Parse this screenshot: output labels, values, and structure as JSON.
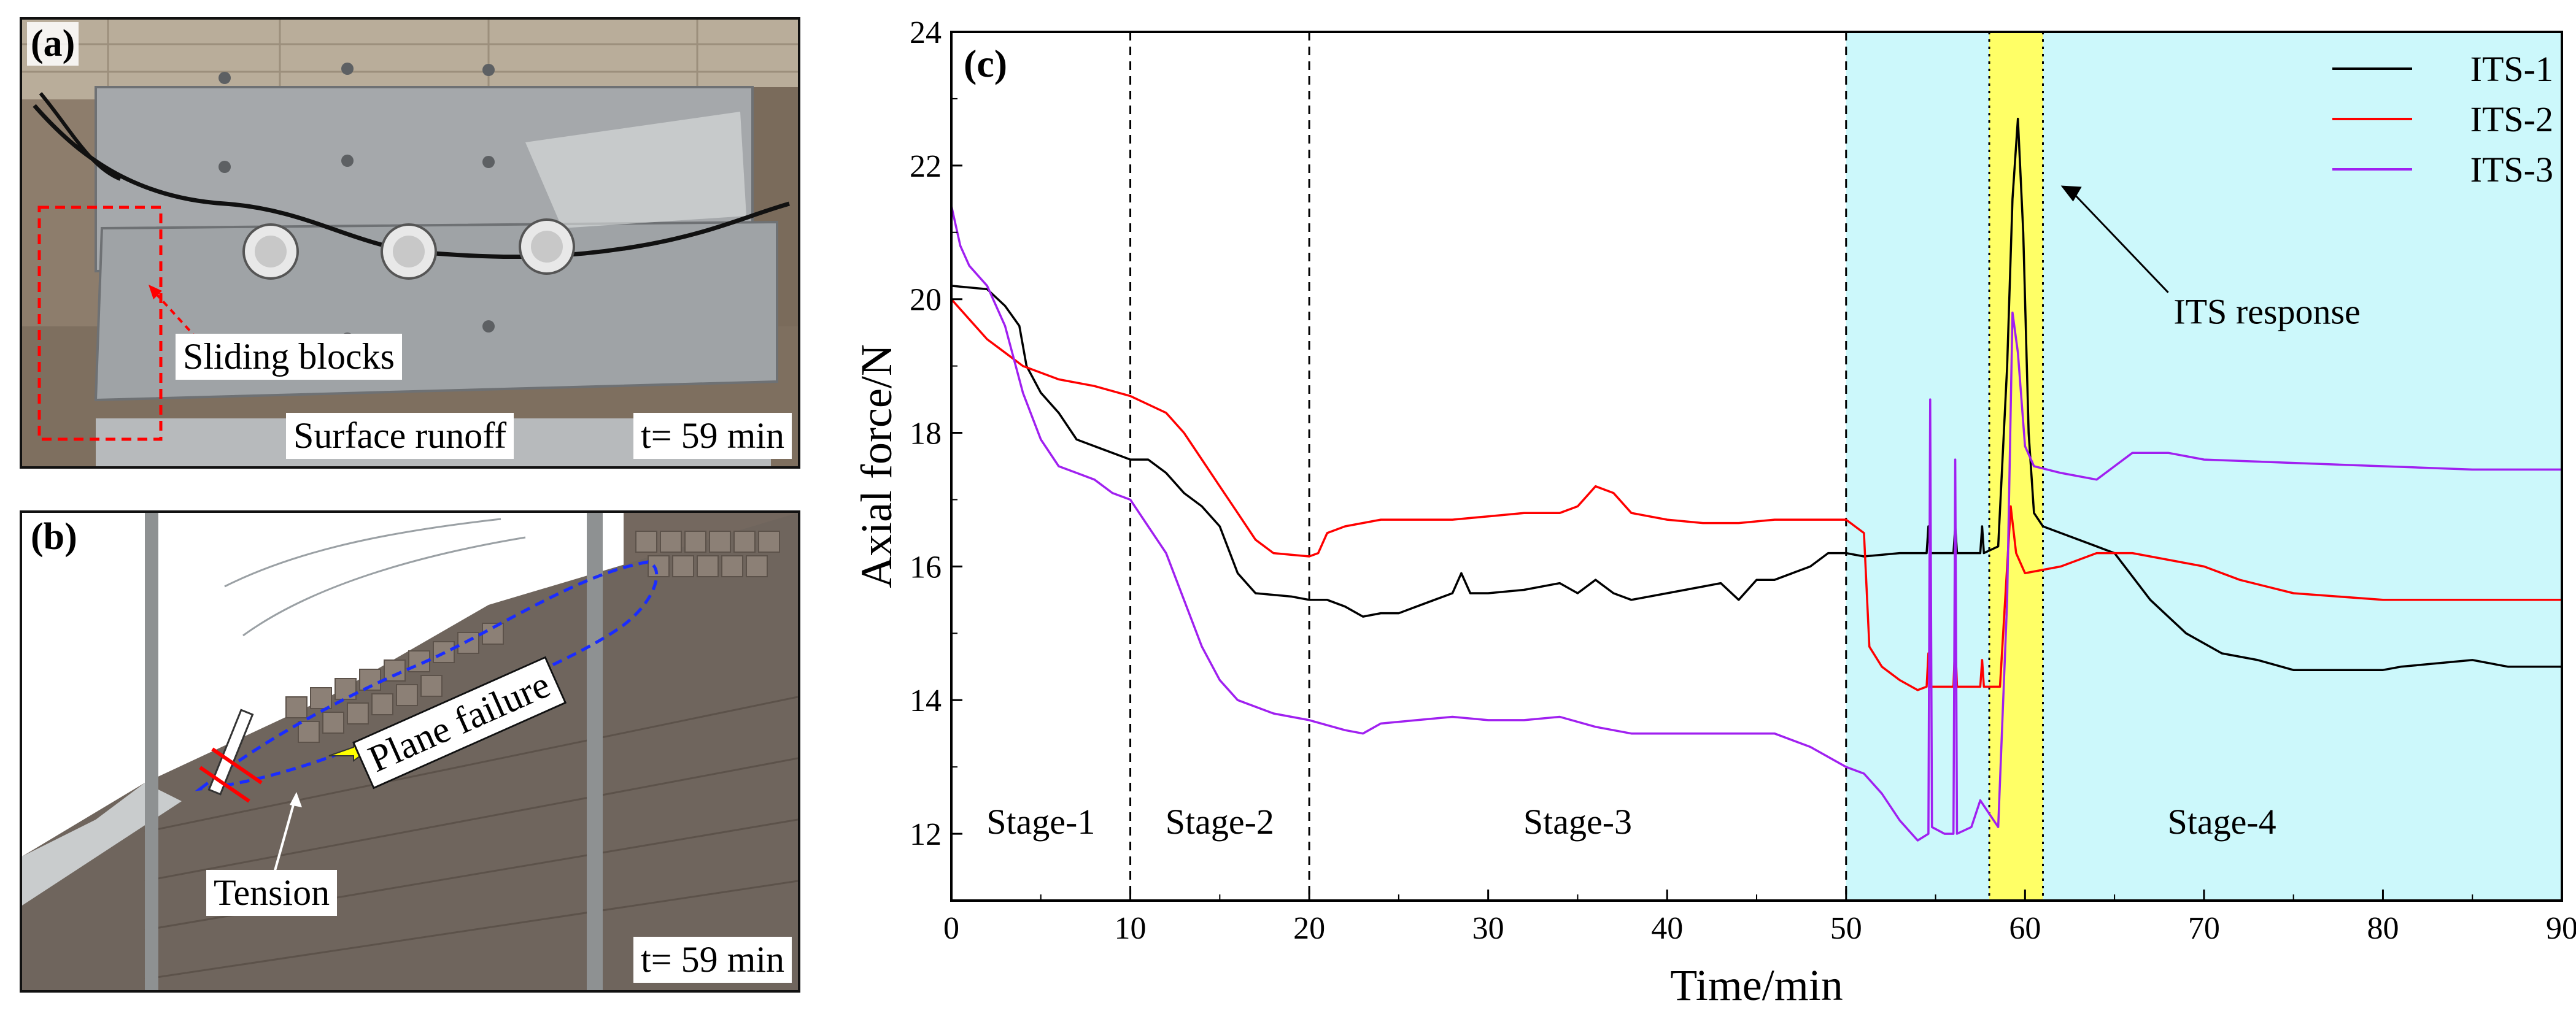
{
  "panel_a": {
    "letter": "(a)",
    "annotation": "Sliding blocks",
    "caption": "Surface runoff",
    "time": "t= 59 min"
  },
  "panel_b": {
    "letter": "(b)",
    "annotation_failure": "Plane failure",
    "annotation_tension": "Tension",
    "time": "t= 59 min"
  },
  "chart_data": {
    "type": "line",
    "panel_label": "(c)",
    "title": "",
    "xlabel": "Time/min",
    "ylabel": "Axial force/N",
    "xlim": [
      0,
      90
    ],
    "ylim": [
      11,
      24
    ],
    "xticks": [
      0,
      10,
      20,
      30,
      40,
      50,
      60,
      70,
      80,
      90
    ],
    "yticks": [
      12,
      14,
      16,
      18,
      20,
      22,
      24
    ],
    "grid": false,
    "legend_position": "top-right",
    "stage_boundaries": [
      10,
      20,
      50
    ],
    "stages": [
      {
        "label": "Stage-1",
        "x": 5
      },
      {
        "label": "Stage-2",
        "x": 15
      },
      {
        "label": "Stage-3",
        "x": 35
      },
      {
        "label": "Stage-4",
        "x": 71
      }
    ],
    "shaded_regions": [
      {
        "from": 50,
        "to": 90,
        "color": "#ccf8fb"
      },
      {
        "from": 58,
        "to": 61,
        "color": "#ffff66"
      }
    ],
    "response_lines": [
      58,
      61
    ],
    "annotation": {
      "text": "ITS response",
      "point_at": [
        62,
        21.7
      ]
    },
    "series": [
      {
        "name": "ITS-1",
        "color": "#000000",
        "points": [
          [
            0,
            20.2
          ],
          [
            2,
            20.15
          ],
          [
            3,
            19.9
          ],
          [
            3.8,
            19.6
          ],
          [
            4.2,
            19.0
          ],
          [
            5,
            18.6
          ],
          [
            6,
            18.3
          ],
          [
            7,
            17.9
          ],
          [
            8,
            17.8
          ],
          [
            10,
            17.6
          ],
          [
            11,
            17.6
          ],
          [
            12,
            17.4
          ],
          [
            13,
            17.1
          ],
          [
            14,
            16.9
          ],
          [
            15,
            16.6
          ],
          [
            16,
            15.9
          ],
          [
            17,
            15.6
          ],
          [
            19,
            15.55
          ],
          [
            20,
            15.5
          ],
          [
            21,
            15.5
          ],
          [
            22,
            15.4
          ],
          [
            23,
            15.25
          ],
          [
            24,
            15.3
          ],
          [
            25,
            15.3
          ],
          [
            26,
            15.4
          ],
          [
            27,
            15.5
          ],
          [
            28,
            15.6
          ],
          [
            28.5,
            15.9
          ],
          [
            29,
            15.6
          ],
          [
            30,
            15.6
          ],
          [
            32,
            15.65
          ],
          [
            34,
            15.75
          ],
          [
            35,
            15.6
          ],
          [
            36,
            15.8
          ],
          [
            37,
            15.6
          ],
          [
            38,
            15.5
          ],
          [
            40,
            15.6
          ],
          [
            42,
            15.7
          ],
          [
            43,
            15.75
          ],
          [
            44,
            15.5
          ],
          [
            45,
            15.8
          ],
          [
            46,
            15.8
          ],
          [
            47,
            15.9
          ],
          [
            48,
            16.0
          ],
          [
            49,
            16.2
          ],
          [
            50,
            16.2
          ],
          [
            51,
            16.15
          ],
          [
            53,
            16.2
          ],
          [
            54.5,
            16.2
          ],
          [
            54.6,
            16.6
          ],
          [
            54.7,
            16.2
          ],
          [
            56,
            16.2
          ],
          [
            56.1,
            16.6
          ],
          [
            56.2,
            16.2
          ],
          [
            57.5,
            16.2
          ],
          [
            57.6,
            16.6
          ],
          [
            57.7,
            16.2
          ],
          [
            58.5,
            16.3
          ],
          [
            59,
            19.0
          ],
          [
            59.3,
            21.5
          ],
          [
            59.6,
            22.7
          ],
          [
            59.9,
            21.0
          ],
          [
            60.2,
            18.0
          ],
          [
            60.5,
            16.8
          ],
          [
            61,
            16.6
          ],
          [
            62,
            16.5
          ],
          [
            64,
            16.3
          ],
          [
            65,
            16.2
          ],
          [
            67,
            15.5
          ],
          [
            69,
            15.0
          ],
          [
            71,
            14.7
          ],
          [
            73,
            14.6
          ],
          [
            75,
            14.45
          ],
          [
            80,
            14.45
          ],
          [
            81,
            14.5
          ],
          [
            85,
            14.6
          ],
          [
            87,
            14.5
          ],
          [
            90,
            14.5
          ]
        ]
      },
      {
        "name": "ITS-2",
        "color": "#ff0000",
        "points": [
          [
            0,
            20.0
          ],
          [
            1,
            19.7
          ],
          [
            2,
            19.4
          ],
          [
            3,
            19.2
          ],
          [
            4,
            19.0
          ],
          [
            6,
            18.8
          ],
          [
            8,
            18.7
          ],
          [
            10,
            18.55
          ],
          [
            12,
            18.3
          ],
          [
            13,
            18.0
          ],
          [
            14,
            17.6
          ],
          [
            15,
            17.2
          ],
          [
            16,
            16.8
          ],
          [
            17,
            16.4
          ],
          [
            18,
            16.2
          ],
          [
            20,
            16.15
          ],
          [
            20.5,
            16.2
          ],
          [
            21,
            16.5
          ],
          [
            22,
            16.6
          ],
          [
            24,
            16.7
          ],
          [
            26,
            16.7
          ],
          [
            28,
            16.7
          ],
          [
            30,
            16.75
          ],
          [
            32,
            16.8
          ],
          [
            34,
            16.8
          ],
          [
            35,
            16.9
          ],
          [
            36,
            17.2
          ],
          [
            37,
            17.1
          ],
          [
            38,
            16.8
          ],
          [
            40,
            16.7
          ],
          [
            42,
            16.65
          ],
          [
            44,
            16.65
          ],
          [
            46,
            16.7
          ],
          [
            48,
            16.7
          ],
          [
            50,
            16.7
          ],
          [
            51,
            16.5
          ],
          [
            51.3,
            14.8
          ],
          [
            52,
            14.5
          ],
          [
            53,
            14.3
          ],
          [
            54,
            14.15
          ],
          [
            54.5,
            14.2
          ],
          [
            54.6,
            14.7
          ],
          [
            54.7,
            14.2
          ],
          [
            56,
            14.2
          ],
          [
            56.1,
            14.9
          ],
          [
            56.2,
            14.2
          ],
          [
            57.5,
            14.2
          ],
          [
            57.6,
            14.6
          ],
          [
            57.7,
            14.2
          ],
          [
            58.6,
            14.2
          ],
          [
            59.2,
            16.9
          ],
          [
            59.5,
            16.2
          ],
          [
            60,
            15.9
          ],
          [
            62,
            16.0
          ],
          [
            64,
            16.2
          ],
          [
            66,
            16.2
          ],
          [
            68,
            16.1
          ],
          [
            70,
            16.0
          ],
          [
            72,
            15.8
          ],
          [
            75,
            15.6
          ],
          [
            80,
            15.5
          ],
          [
            85,
            15.5
          ],
          [
            90,
            15.5
          ]
        ]
      },
      {
        "name": "ITS-3",
        "color": "#a020f0",
        "points": [
          [
            0,
            21.4
          ],
          [
            0.5,
            20.8
          ],
          [
            1,
            20.5
          ],
          [
            2,
            20.2
          ],
          [
            3,
            19.6
          ],
          [
            4,
            18.6
          ],
          [
            5,
            17.9
          ],
          [
            6,
            17.5
          ],
          [
            7,
            17.4
          ],
          [
            8,
            17.3
          ],
          [
            9,
            17.1
          ],
          [
            10,
            17.0
          ],
          [
            11,
            16.6
          ],
          [
            12,
            16.2
          ],
          [
            13,
            15.5
          ],
          [
            14,
            14.8
          ],
          [
            15,
            14.3
          ],
          [
            16,
            14.0
          ],
          [
            18,
            13.8
          ],
          [
            20,
            13.7
          ],
          [
            22,
            13.55
          ],
          [
            23,
            13.5
          ],
          [
            24,
            13.65
          ],
          [
            26,
            13.7
          ],
          [
            28,
            13.75
          ],
          [
            30,
            13.7
          ],
          [
            32,
            13.7
          ],
          [
            34,
            13.75
          ],
          [
            36,
            13.6
          ],
          [
            38,
            13.5
          ],
          [
            40,
            13.5
          ],
          [
            42,
            13.5
          ],
          [
            44,
            13.5
          ],
          [
            46,
            13.5
          ],
          [
            48,
            13.3
          ],
          [
            50,
            13.0
          ],
          [
            51,
            12.9
          ],
          [
            52,
            12.6
          ],
          [
            53,
            12.2
          ],
          [
            54,
            11.9
          ],
          [
            54.6,
            12.0
          ],
          [
            54.7,
            18.5
          ],
          [
            54.8,
            12.1
          ],
          [
            55.5,
            12.0
          ],
          [
            56,
            12.0
          ],
          [
            56.1,
            17.6
          ],
          [
            56.2,
            12.0
          ],
          [
            57,
            12.1
          ],
          [
            57.5,
            12.5
          ],
          [
            58.5,
            12.1
          ],
          [
            59.0,
            15.5
          ],
          [
            59.3,
            19.8
          ],
          [
            59.6,
            19.2
          ],
          [
            60,
            17.8
          ],
          [
            60.5,
            17.5
          ],
          [
            62,
            17.4
          ],
          [
            64,
            17.3
          ],
          [
            65,
            17.5
          ],
          [
            66,
            17.7
          ],
          [
            68,
            17.7
          ],
          [
            70,
            17.6
          ],
          [
            75,
            17.55
          ],
          [
            80,
            17.5
          ],
          [
            85,
            17.45
          ],
          [
            90,
            17.45
          ]
        ]
      }
    ]
  }
}
